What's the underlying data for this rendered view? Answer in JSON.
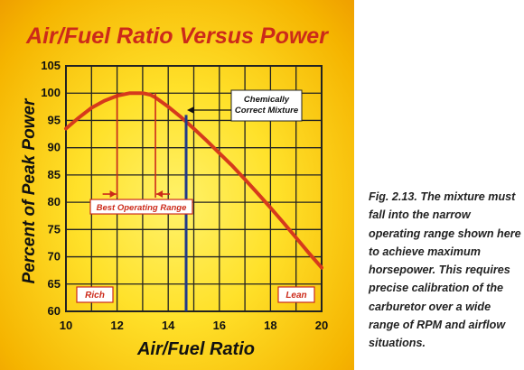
{
  "caption": {
    "label": "Fig. 2.13.",
    "text": "The mixture must fall into the narrow operating range shown here to achieve maximum horsepower. This requires precise calibration of the carburetor over a wide range of RPM and airflow situations."
  },
  "colors": {
    "curve": "#d63a1c",
    "title": "#cc2a1a",
    "grid": "#222222",
    "marker": "#1f3a8a",
    "annotation": "#cc2a1a",
    "panel_yellow": "#ffe12a"
  },
  "chart_data": {
    "type": "line",
    "title": "Air/Fuel Ratio Versus Power",
    "xlabel": "Air/Fuel Ratio",
    "ylabel": "Percent of Peak Power",
    "xlim": [
      10,
      20
    ],
    "ylim": [
      60,
      105
    ],
    "xticks": [
      10,
      12,
      14,
      16,
      18,
      20
    ],
    "yticks": [
      60,
      65,
      70,
      75,
      80,
      85,
      90,
      95,
      100,
      105
    ],
    "grid": true,
    "x": [
      10,
      10.5,
      11,
      11.5,
      12,
      12.5,
      13,
      13.3,
      13.5,
      14,
      14.5,
      15,
      15.5,
      16,
      16.5,
      17,
      17.5,
      18,
      18.5,
      19,
      19.5,
      20
    ],
    "y": [
      93.5,
      95.5,
      97.3,
      98.6,
      99.5,
      100,
      100,
      99.7,
      99.2,
      97.5,
      95.6,
      93.5,
      91.3,
      89,
      86.7,
      84.2,
      81.6,
      79,
      76.3,
      73.5,
      70.7,
      68
    ],
    "annotations": {
      "chemically_correct": {
        "label": "Chemically\nCorrect Mixture",
        "x": 14.7
      },
      "best_range": {
        "label": "Best Operating Range",
        "x_start": 12.0,
        "x_end": 13.5,
        "y": 81.5
      },
      "rich": "Rich",
      "lean": "Lean"
    }
  }
}
